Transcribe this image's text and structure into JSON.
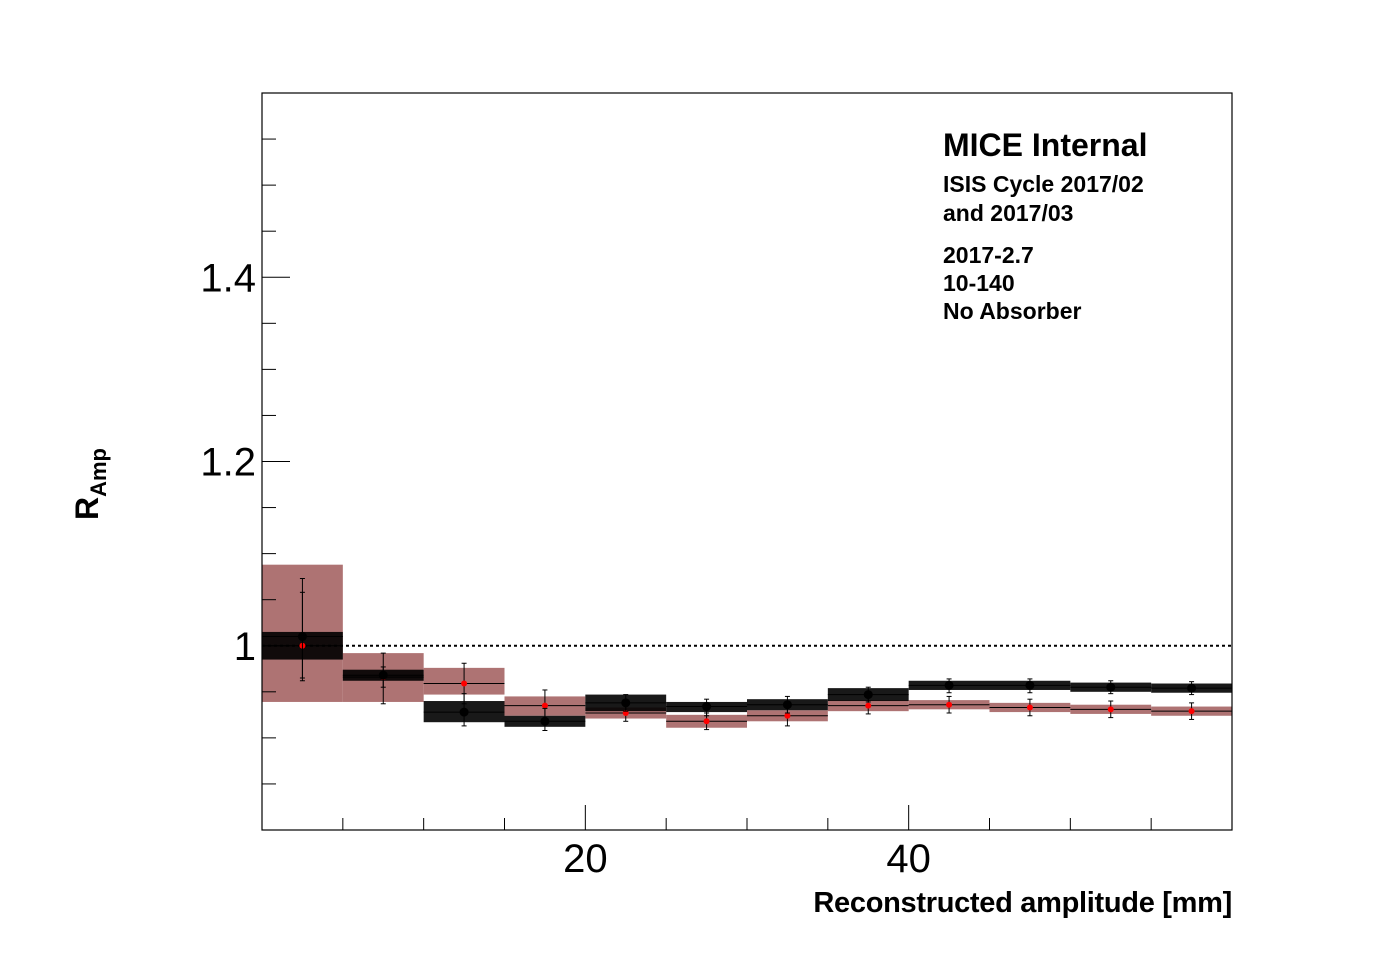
{
  "chart_data": {
    "type": "scatter",
    "xlabel": "Reconstructed amplitude [mm]",
    "ylabel": "R",
    "ylabel_sub": "Amp",
    "xlim": [
      0,
      60
    ],
    "ylim": [
      0.8,
      1.6
    ],
    "x_ticks": [
      20,
      40
    ],
    "y_ticks": [
      1,
      1.2,
      1.4
    ],
    "reference_line": 1.0,
    "annotations": {
      "title": "MICE Internal",
      "lines": [
        "ISIS Cycle 2017/02",
        "and 2017/03",
        "2017-2.7",
        "10-140",
        "No Absorber"
      ]
    },
    "bin_edges": [
      0,
      5,
      10,
      15,
      20,
      25,
      30,
      35,
      40,
      45,
      50,
      55,
      60
    ],
    "x": [
      2.5,
      7.5,
      12.5,
      17.5,
      22.5,
      27.5,
      32.5,
      37.5,
      42.5,
      47.5,
      52.5,
      57.5
    ],
    "series": [
      {
        "marker_color": "#000000",
        "band_color": "#000000",
        "values": [
          1.01,
          0.968,
          0.928,
          0.918,
          0.938,
          0.934,
          0.936,
          0.947,
          0.957,
          0.957,
          0.955,
          0.954
        ],
        "band_lo": [
          0.985,
          0.962,
          0.917,
          0.912,
          0.929,
          0.928,
          0.93,
          0.94,
          0.952,
          0.952,
          0.95,
          0.949
        ],
        "band_hi": [
          1.015,
          0.974,
          0.94,
          0.924,
          0.947,
          0.939,
          0.942,
          0.954,
          0.962,
          0.962,
          0.96,
          0.959
        ],
        "err_lo": [
          0.962,
          0.937,
          0.913,
          0.908,
          0.929,
          0.924,
          0.927,
          0.939,
          0.949,
          0.949,
          0.948,
          0.947
        ],
        "err_hi": [
          1.073,
          0.992,
          0.948,
          0.932,
          0.947,
          0.942,
          0.945,
          0.955,
          0.964,
          0.964,
          0.962,
          0.961
        ]
      },
      {
        "marker_color": "#ff0000",
        "band_color": "#a05a5a",
        "values": [
          1.0,
          0.966,
          0.959,
          0.935,
          0.927,
          0.918,
          0.924,
          0.935,
          0.936,
          0.933,
          0.931,
          0.929
        ],
        "band_lo": [
          0.939,
          0.939,
          0.947,
          0.924,
          0.921,
          0.911,
          0.918,
          0.929,
          0.931,
          0.928,
          0.926,
          0.924
        ],
        "band_hi": [
          1.088,
          0.992,
          0.976,
          0.945,
          0.933,
          0.925,
          0.93,
          0.941,
          0.941,
          0.938,
          0.936,
          0.934
        ],
        "err_lo": [
          0.965,
          0.955,
          0.937,
          0.918,
          0.918,
          0.909,
          0.913,
          0.926,
          0.927,
          0.924,
          0.922,
          0.92
        ],
        "err_hi": [
          1.058,
          0.977,
          0.981,
          0.952,
          0.936,
          0.927,
          0.935,
          0.944,
          0.945,
          0.942,
          0.94,
          0.938
        ]
      }
    ]
  }
}
